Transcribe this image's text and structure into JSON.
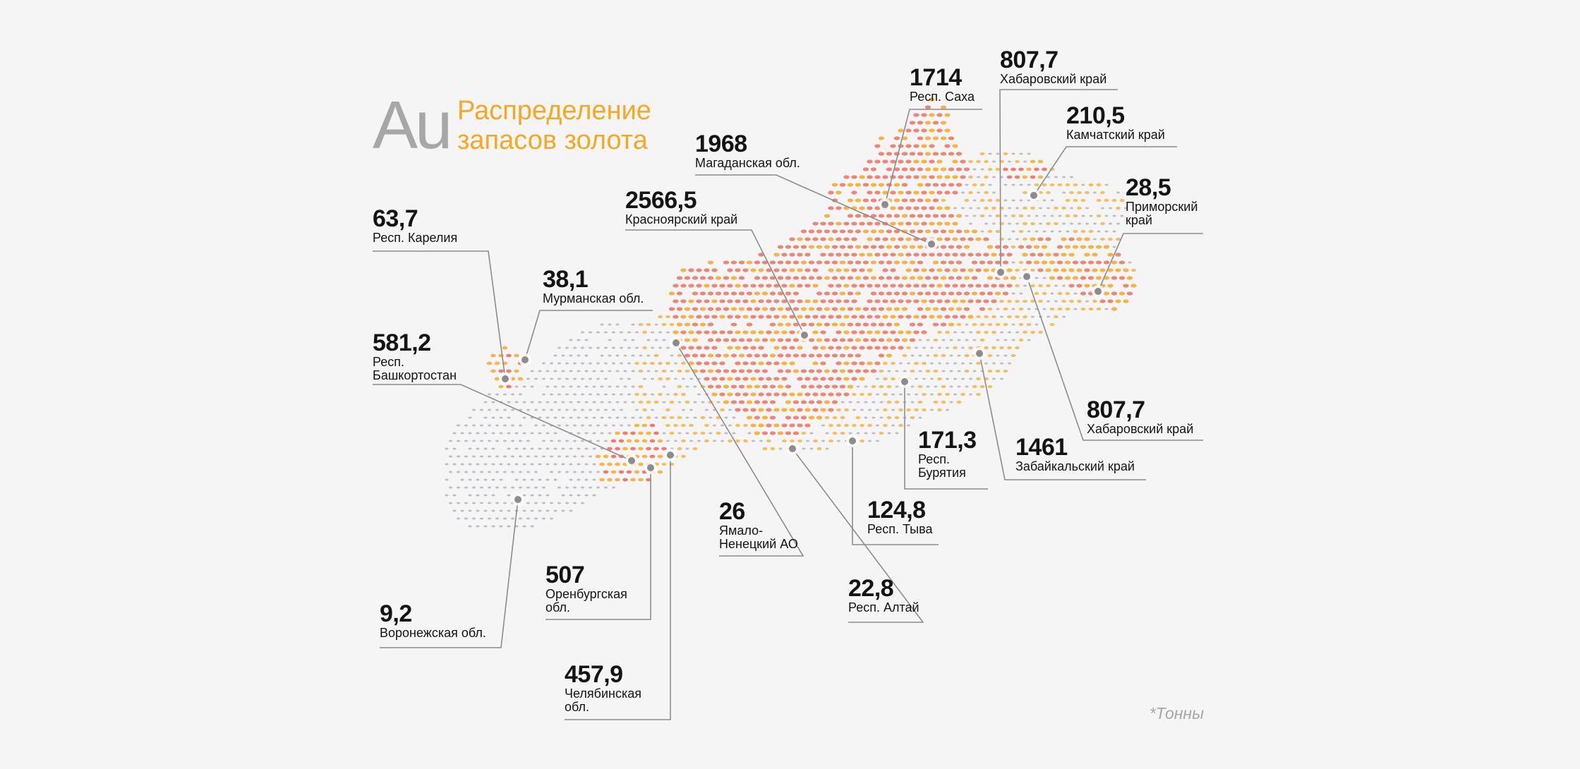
{
  "title": {
    "symbol": "Au",
    "text_line1": "Распределение",
    "text_line2": "запасов золота"
  },
  "unit_note": "*Тонны",
  "colors": {
    "background": "#f5f5f5",
    "accent_orange": "#f4a823",
    "high_red": "#e8604c",
    "base_gray": "#9a9aa8",
    "leader_line": "#8c8c8c",
    "title_gray": "#a7a7a7"
  },
  "regions": [
    {
      "id": "karelia",
      "value": "63,7",
      "name": "Респ. Карелия"
    },
    {
      "id": "murmansk",
      "value": "38,1",
      "name": "Мурманская обл."
    },
    {
      "id": "bashkortostan",
      "value": "581,2",
      "name": "Респ.\nБашкортостан"
    },
    {
      "id": "voronezh",
      "value": "9,2",
      "name": "Воронежская обл."
    },
    {
      "id": "orenburg",
      "value": "507",
      "name": "Оренбургская\nобл."
    },
    {
      "id": "chelyabinsk",
      "value": "457,9",
      "name": "Челябинская\nобл."
    },
    {
      "id": "yamal",
      "value": "26",
      "name": "Ямало-\nНенецкий АО"
    },
    {
      "id": "altai",
      "value": "22,8",
      "name": "Респ. Алтай"
    },
    {
      "id": "tyva",
      "value": "124,8",
      "name": "Респ. Тыва"
    },
    {
      "id": "buryatia",
      "value": "171,3",
      "name": "Респ.\nБурятия"
    },
    {
      "id": "zabaikalsky",
      "value": "1461",
      "name": "Забайкальский край"
    },
    {
      "id": "khabarovsk_south",
      "value": "807,7",
      "name": "Хабаровский край"
    },
    {
      "id": "krasnoyarsk",
      "value": "2566,5",
      "name": "Красноярский  край"
    },
    {
      "id": "magadan",
      "value": "1968",
      "name": "Магаданская обл."
    },
    {
      "id": "sakha",
      "value": "1714",
      "name": "Респ. Саха"
    },
    {
      "id": "khabarovsk_north",
      "value": "807,7",
      "name": "Хабаровский край"
    },
    {
      "id": "kamchatka",
      "value": "210,5",
      "name": "Камчатский край"
    },
    {
      "id": "primorsky",
      "value": "28,5",
      "name": "Приморский\nкрай"
    }
  ]
}
